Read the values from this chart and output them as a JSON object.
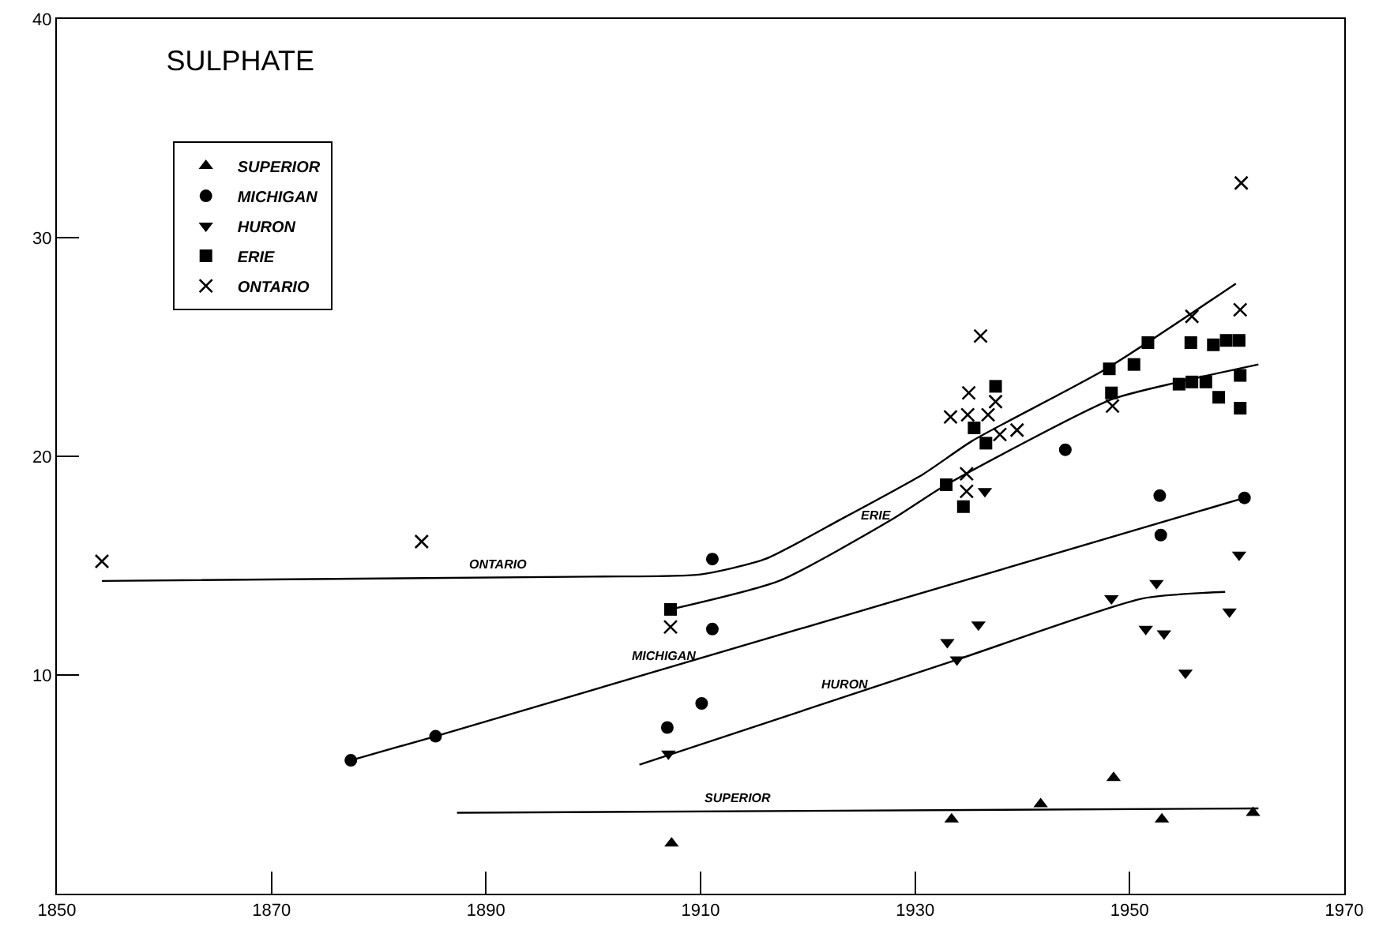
{
  "chart_data": {
    "type": "scatter",
    "title": "SULPHATE",
    "xlim": [
      1850,
      1970
    ],
    "xticks": [
      1850,
      1870,
      1890,
      1910,
      1930,
      1950,
      1970
    ],
    "ylim": [
      0,
      40
    ],
    "yticks": [
      {
        "value": 0,
        "label": null
      },
      10,
      20,
      30,
      40
    ],
    "grid": false,
    "legend": "top left",
    "series": [
      {
        "name": "SUPERIOR",
        "color": "#000000",
        "marker": "triangle",
        "x": [
          1907.3,
          1933.4,
          1941.7,
          1948.5,
          1953,
          1961.5
        ],
        "values": [
          2.3,
          3.4,
          4.1,
          5.3,
          3.4,
          3.7
        ]
      },
      {
        "name": "MICHIGAN",
        "color": "#000000",
        "marker": "circle",
        "x": [
          1877.4,
          1885.3,
          1906.9,
          1910.1,
          1911.1,
          1911.1,
          1944,
          1952.8,
          1952.9,
          1960.7
        ],
        "values": [
          6.1,
          7.2,
          7.6,
          8.7,
          12.1,
          15.3,
          20.3,
          18.2,
          16.4,
          18.1
        ]
      },
      {
        "name": "HURON",
        "color": "#000000",
        "marker": "triangle-down",
        "x": [
          1907,
          1933,
          1933.9,
          1935.9,
          1936.5,
          1948.3,
          1952.5,
          1951.5,
          1953.2,
          1955.2,
          1959.3,
          1960.2
        ],
        "values": [
          6.4,
          11.5,
          10.7,
          12.3,
          18.4,
          13.5,
          14.2,
          12.1,
          11.9,
          10.1,
          12.9,
          15.5
        ]
      },
      {
        "name": "ERIE",
        "color": "#000000",
        "marker": "square",
        "x": [
          1907.2,
          1932.9,
          1934.5,
          1935.5,
          1936.6,
          1937.5,
          1948.1,
          1948.3,
          1950.4,
          1951.7,
          1955.7,
          1957.8,
          1959,
          1960.2,
          1954.6,
          1955.8,
          1957.1,
          1958.3,
          1960.3,
          1960.3
        ],
        "values": [
          13.0,
          18.7,
          17.7,
          21.3,
          20.6,
          23.2,
          24.0,
          22.9,
          24.2,
          25.2,
          25.2,
          25.1,
          25.3,
          25.3,
          23.3,
          23.4,
          23.4,
          22.7,
          23.7,
          22.2
        ]
      },
      {
        "name": "ONTARIO",
        "color": "#000000",
        "marker": "cross",
        "x": [
          1854.2,
          1884,
          1907.2,
          1933.3,
          1934.9,
          1935,
          1936.8,
          1937.5,
          1936.1,
          1937.9,
          1939.5,
          1934.8,
          1934.8,
          1948.4,
          1955.8,
          1960.3,
          1960.4
        ],
        "values": [
          15.2,
          16.1,
          12.2,
          21.8,
          21.9,
          22.9,
          21.9,
          22.5,
          25.5,
          21.0,
          21.2,
          19.2,
          18.4,
          22.3,
          26.4,
          26.7,
          32.5
        ]
      },
      {
        "type": "line",
        "name": "SUPERIOR",
        "color": "#000000",
        "marker": "none",
        "x": [
          1887.3,
          1962
        ],
        "values": [
          3.7,
          3.9
        ]
      },
      {
        "type": "line",
        "name": "MICHIGAN",
        "color": "#000000",
        "marker": "none",
        "x": [
          1877.4,
          1885.3,
          1960.7
        ],
        "values": [
          6.1,
          7.2,
          18.1
        ]
      },
      {
        "type": "line",
        "name": "HURON",
        "color": "#000000",
        "marker": "none",
        "x": [
          1904.3,
          1933.9,
          1951.2,
          1958.9
        ],
        "values": [
          5.9,
          10.7,
          13.5,
          13.8
        ]
      },
      {
        "type": "line",
        "name": "ERIE",
        "color": "#000000",
        "marker": "none",
        "x": [
          1907.2,
          1917.3,
          1927.8,
          1932.9,
          1948.3,
          1954.6,
          1962
        ],
        "values": [
          13.0,
          14.3,
          17.1,
          18.7,
          22.6,
          23.4,
          24.2
        ]
      },
      {
        "type": "line",
        "name": "ONTARIO",
        "color": "#000000",
        "marker": "none",
        "x": [
          1854.2,
          1900,
          1910,
          1916,
          1923,
          1930.8,
          1935.3,
          1947.8,
          1959.9
        ],
        "values": [
          14.3,
          14.5,
          14.6,
          15.3,
          17.1,
          19.2,
          20.7,
          24.0,
          27.9
        ]
      }
    ]
  }
}
